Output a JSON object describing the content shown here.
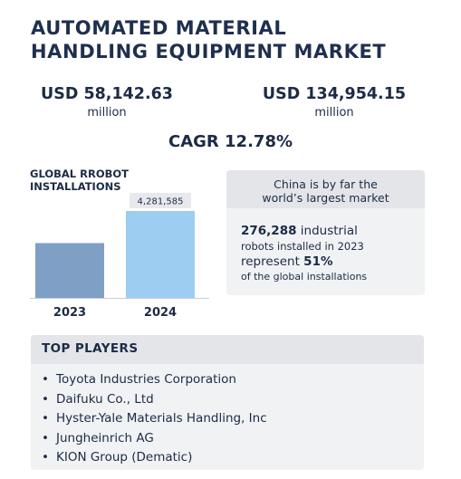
{
  "title": {
    "line1": "AUTOMATED MATERIAL",
    "line2": "HANDLING EQUIPMENT MARKET"
  },
  "market": {
    "left_value": "USD 58,142.63",
    "left_unit": "million",
    "right_value": "USD 134,954.15",
    "right_unit": "million",
    "cagr": "CAGR 12.78%"
  },
  "chart_data": {
    "type": "bar",
    "title": "GLOBAL RROBOT INSTALLATIONS",
    "title_lines": [
      "GLOBAL RROBOT",
      "INSTALLATIONS"
    ],
    "categories": [
      "2023",
      "2024"
    ],
    "values": [
      2700000,
      4281585
    ],
    "data_labels": [
      "",
      "4,281,585"
    ],
    "colors": [
      "#7f9fc5",
      "#9dcdf0"
    ],
    "xlabel": "",
    "ylabel": "",
    "grid": false,
    "legend": "none"
  },
  "info": {
    "headline": "China is by far the world’s largest market",
    "headline_line1": "China is by far the",
    "headline_line2": "world’s largest market",
    "count": "276,288",
    "text1": " industrial",
    "text2": "robots installed in 2023",
    "text3": "represent ",
    "percent": "51%",
    "text4": "of the global installations"
  },
  "players": {
    "heading": "TOP PLAYERS",
    "bullet": "•",
    "items": [
      "Toyota Industries Corporation",
      "Daifuku Co., Ltd",
      "Hyster-Yale Materials Handling, Inc",
      "Jungheinrich AG",
      "KION Group (Dematic)"
    ]
  }
}
